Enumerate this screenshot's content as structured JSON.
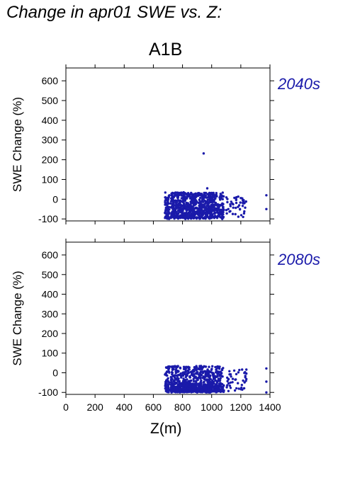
{
  "page": {
    "title": "Change in apr01 SWE vs. Z:",
    "scenario": "A1B",
    "xlabel": "Z(m)"
  },
  "chart_data": [
    {
      "type": "scatter",
      "panel_label": "2040s",
      "ylabel": "SWE Change (%)",
      "xlabel": "",
      "xlim": [
        0,
        1400
      ],
      "ylim": [
        -110,
        665
      ],
      "yticks": [
        -100,
        0,
        100,
        200,
        300,
        400,
        500,
        600
      ],
      "xticks": [
        0,
        200,
        400,
        600,
        800,
        1000,
        1200,
        1400
      ],
      "show_xtick_labels": false,
      "grid": false,
      "point_color": "#1a1aaa",
      "x_extent": [
        680,
        1380
      ],
      "y_extent": [
        -100,
        232
      ],
      "notable_points": [
        {
          "x": 945,
          "y": 232
        },
        {
          "x": 970,
          "y": 55
        },
        {
          "x": 1375,
          "y": 20
        },
        {
          "x": 1375,
          "y": -50
        }
      ]
    },
    {
      "type": "scatter",
      "panel_label": "2080s",
      "ylabel": "SWE Change (%)",
      "xlabel": "Z(m)",
      "xlim": [
        0,
        1400
      ],
      "ylim": [
        -110,
        665
      ],
      "yticks": [
        -100,
        0,
        100,
        200,
        300,
        400,
        500,
        600
      ],
      "xticks": [
        0,
        200,
        400,
        600,
        800,
        1000,
        1200,
        1400
      ],
      "show_xtick_labels": true,
      "grid": false,
      "point_color": "#1a1aaa",
      "x_extent": [
        680,
        1380
      ],
      "y_extent": [
        -100,
        40
      ],
      "notable_points": [
        {
          "x": 1375,
          "y": 22
        },
        {
          "x": 1375,
          "y": -45
        },
        {
          "x": 1375,
          "y": -100
        }
      ]
    }
  ]
}
